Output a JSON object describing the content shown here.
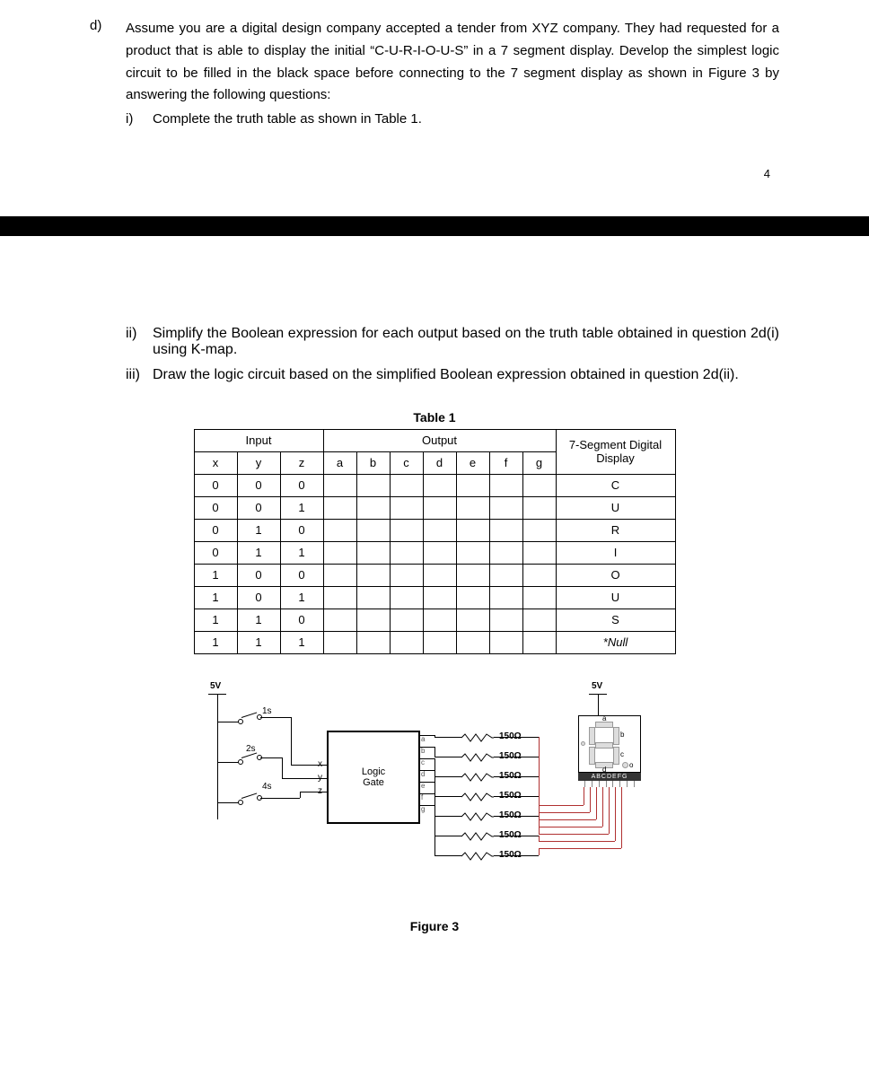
{
  "part1": {
    "label": "d)",
    "text": "Assume you are a digital design company accepted a tender from XYZ company. They had requested for a product that is able to display the initial “C-U-R-I-O-U-S” in a 7 segment display. Develop the simplest logic circuit to be filled in the black space before connecting to the 7 segment display as shown in Figure 3 by answering the following questions:",
    "sub_i_label": "i)",
    "sub_i_text": "Complete the truth table as shown in Table 1.",
    "page_number": "4"
  },
  "part2": {
    "sub_ii_label": "ii)",
    "sub_ii_text": "Simplify the Boolean expression for each output based on the truth table obtained in question 2d(i) using K-map.",
    "sub_iii_label": "iii)",
    "sub_iii_text": "Draw the logic circuit based on the simplified Boolean expression obtained in question 2d(ii)."
  },
  "table": {
    "caption": "Table 1",
    "header_input": "Input",
    "header_output": "Output",
    "header_display": "7-Segment Digital Display",
    "columns_in": [
      "x",
      "y",
      "z"
    ],
    "columns_out": [
      "a",
      "b",
      "c",
      "d",
      "e",
      "f",
      "g"
    ],
    "rows": [
      {
        "in": [
          "0",
          "0",
          "0"
        ],
        "disp": "C"
      },
      {
        "in": [
          "0",
          "0",
          "1"
        ],
        "disp": "U"
      },
      {
        "in": [
          "0",
          "1",
          "0"
        ],
        "disp": "R"
      },
      {
        "in": [
          "0",
          "1",
          "1"
        ],
        "disp": "I"
      },
      {
        "in": [
          "1",
          "0",
          "0"
        ],
        "disp": "O"
      },
      {
        "in": [
          "1",
          "0",
          "1"
        ],
        "disp": "U"
      },
      {
        "in": [
          "1",
          "1",
          "0"
        ],
        "disp": "S"
      },
      {
        "in": [
          "1",
          "1",
          "1"
        ],
        "disp": "*Null",
        "italic": true
      }
    ]
  },
  "figure": {
    "caption": "Figure 3",
    "v5_left": "5V",
    "v5_right": "5V",
    "sw1": "1s",
    "sw2": "2s",
    "sw4": "4s",
    "logic_label": "Logic Gate",
    "in_x": "x",
    "in_y": "y",
    "in_z": "z",
    "out_labels": [
      "a",
      "b",
      "c",
      "d",
      "e",
      "f",
      "g"
    ],
    "resistor_label": "150Ω",
    "seg_labels": [
      "a",
      "b",
      "c",
      "d",
      "o"
    ],
    "seg_bar": "ABCDEFG",
    "colors": {
      "wire": "#000000",
      "wire_red": "#b03030",
      "box_border": "#000000",
      "resistor": "#000000",
      "seg_fill": "#dddddd",
      "seg_border": "#999999"
    }
  }
}
